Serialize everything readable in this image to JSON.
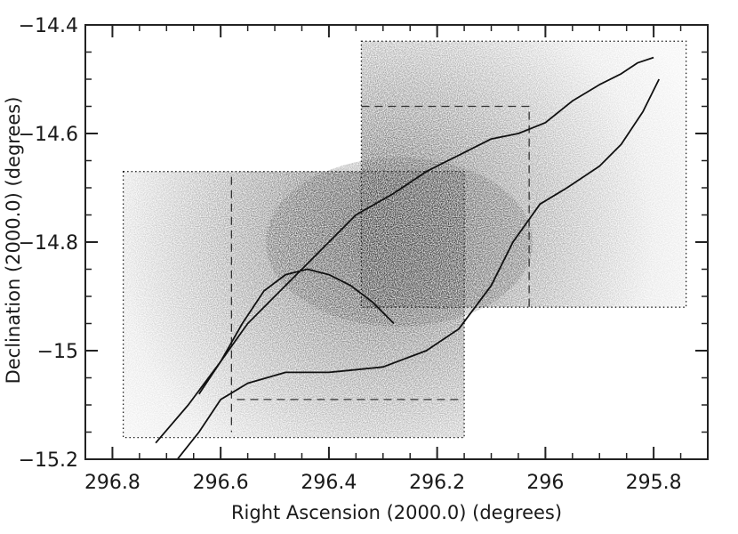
{
  "chart_data": {
    "type": "scatter",
    "title": "",
    "xlabel": "Right Ascension (2000.0) (degrees)",
    "ylabel": "Declination (2000.0) (degrees)",
    "xlim": [
      296.85,
      295.7
    ],
    "ylim": [
      -15.2,
      -14.4
    ],
    "x_reversed": true,
    "grid": false,
    "legend": "none",
    "x_ticks": [
      296.8,
      296.6,
      296.4,
      296.2,
      296,
      295.8
    ],
    "x_tick_labels": [
      "296.8",
      "296.6",
      "296.4",
      "296.2",
      "296",
      "295.8"
    ],
    "y_ticks": [
      -14.4,
      -14.6,
      -14.8,
      -15,
      -15.2
    ],
    "y_tick_labels": [
      "−14.4",
      "−14.6",
      "−14.8",
      "−15",
      "−15.2"
    ],
    "density_peak": {
      "ra": 296.27,
      "dec": -14.8
    },
    "survey_fields": [
      {
        "name": "western field (dotted)",
        "ra": [
          296.78,
          296.15
        ],
        "dec": [
          -15.16,
          -14.67
        ]
      },
      {
        "name": "eastern field (dotted)",
        "ra": [
          296.34,
          295.74
        ],
        "dec": [
          -14.92,
          -14.43
        ]
      }
    ],
    "dashed_lines": [
      {
        "ra": [
          296.58,
          296.58
        ],
        "dec": [
          -14.68,
          -15.15
        ]
      },
      {
        "ra": [
          296.57,
          296.15
        ],
        "dec": [
          -15.09,
          -15.09
        ]
      },
      {
        "ra": [
          296.34,
          296.02
        ],
        "dec": [
          -14.55,
          -14.55
        ]
      },
      {
        "ra": [
          296.03,
          296.03
        ],
        "dec": [
          -14.56,
          -14.92
        ]
      }
    ],
    "contours": [
      {
        "name": "outer contour (upper)",
        "ra": [
          296.72,
          296.66,
          296.6,
          296.55,
          296.5,
          296.45,
          296.4,
          296.35,
          296.28,
          296.22,
          296.16,
          296.1,
          296.05,
          296.0,
          295.95,
          295.9,
          295.86,
          295.83,
          295.8
        ],
        "dec": [
          -15.17,
          -15.1,
          -15.02,
          -14.95,
          -14.9,
          -14.85,
          -14.8,
          -14.75,
          -14.71,
          -14.67,
          -14.64,
          -14.61,
          -14.6,
          -14.58,
          -14.54,
          -14.51,
          -14.49,
          -14.47,
          -14.46
        ]
      },
      {
        "name": "outer contour (lower)",
        "ra": [
          296.68,
          296.64,
          296.6,
          296.55,
          296.48,
          296.4,
          296.3,
          296.22,
          296.16,
          296.1,
          296.06,
          296.01,
          295.96,
          295.9,
          295.86,
          295.82,
          295.79
        ],
        "dec": [
          -15.2,
          -15.15,
          -15.09,
          -15.06,
          -15.04,
          -15.04,
          -15.03,
          -15.0,
          -14.96,
          -14.88,
          -14.8,
          -14.73,
          -14.7,
          -14.66,
          -14.62,
          -14.56,
          -14.5
        ]
      },
      {
        "name": "inner contour",
        "ra": [
          296.64,
          296.6,
          296.56,
          296.52,
          296.48,
          296.44,
          296.4,
          296.36,
          296.32,
          296.28
        ],
        "dec": [
          -15.08,
          -15.02,
          -14.95,
          -14.89,
          -14.86,
          -14.85,
          -14.86,
          -14.88,
          -14.91,
          -14.95
        ]
      }
    ]
  }
}
